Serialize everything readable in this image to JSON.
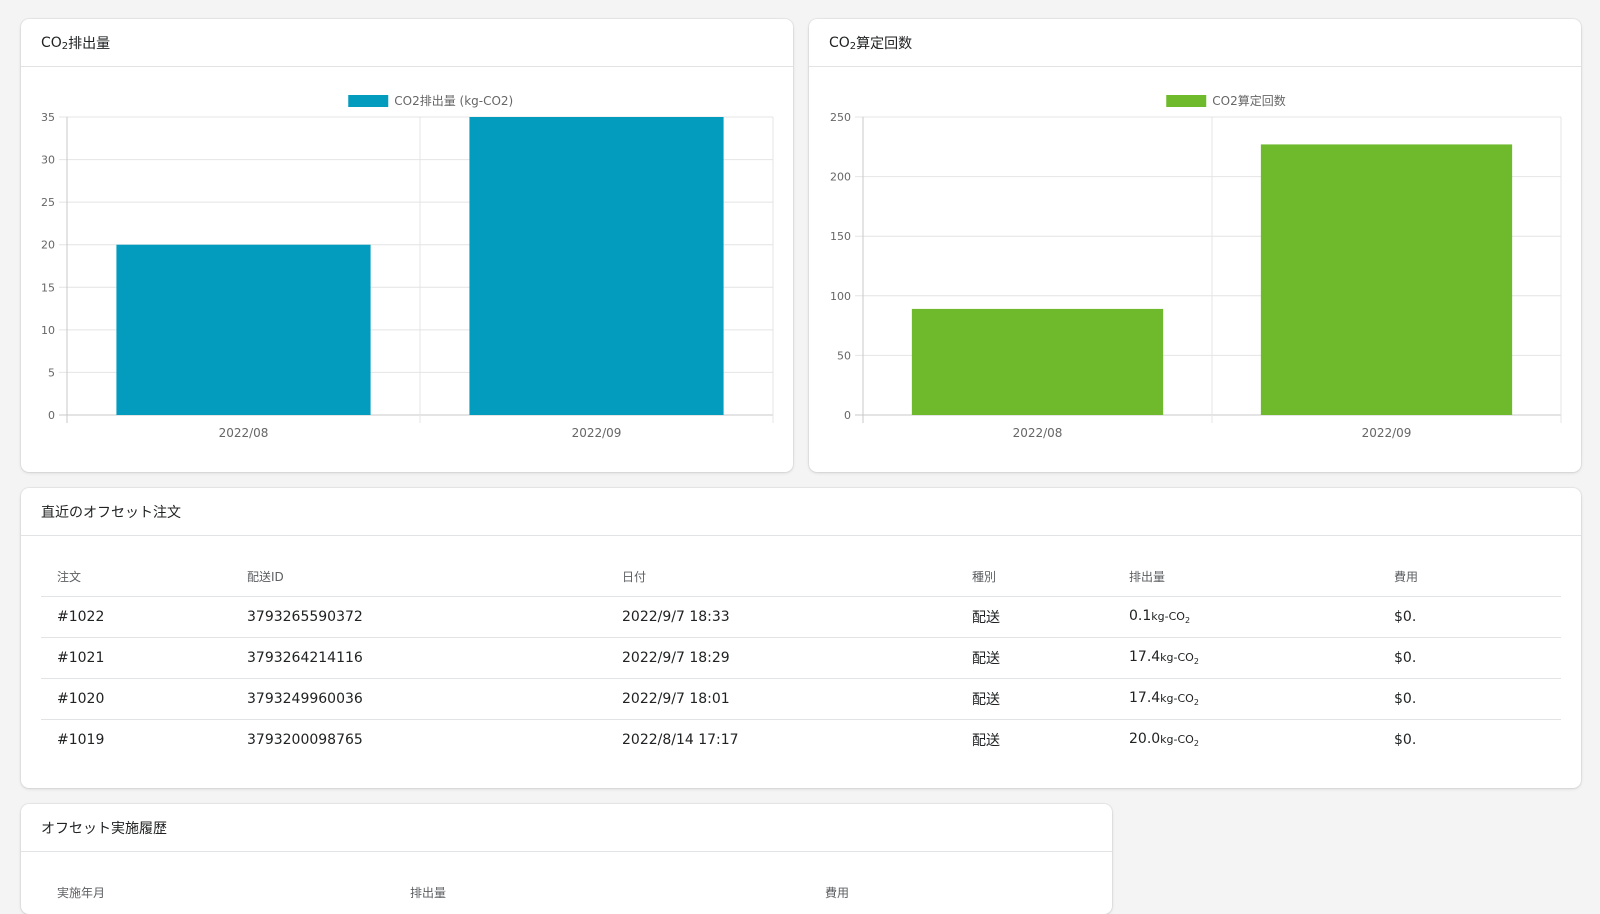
{
  "emission_card": {
    "title_prefix": "CO",
    "title_sub": "2",
    "title_suffix": "排出量"
  },
  "count_card": {
    "title_prefix": "CO",
    "title_sub": "2",
    "title_suffix": "算定回数"
  },
  "orders_card": {
    "title": "直近のオフセット注文",
    "columns": [
      "注文",
      "配送ID",
      "日付",
      "種別",
      "排出量",
      "費用"
    ],
    "unit_prefix": "kg-CO",
    "unit_sub": "2",
    "rows": [
      {
        "order": "#1022",
        "shipping_id": "3793265590372",
        "date": "2022/9/7 18:33",
        "type": "配送",
        "emission": "0.1",
        "cost": "$0."
      },
      {
        "order": "#1021",
        "shipping_id": "3793264214116",
        "date": "2022/9/7 18:29",
        "type": "配送",
        "emission": "17.4",
        "cost": "$0."
      },
      {
        "order": "#1020",
        "shipping_id": "3793249960036",
        "date": "2022/9/7 18:01",
        "type": "配送",
        "emission": "17.4",
        "cost": "$0."
      },
      {
        "order": "#1019",
        "shipping_id": "3793200098765",
        "date": "2022/8/14 17:17",
        "type": "配送",
        "emission": "20.0",
        "cost": "$0."
      }
    ]
  },
  "history_card": {
    "title": "オフセット実施履歴",
    "columns": [
      "実施年月",
      "排出量",
      "費用"
    ]
  },
  "chart_data": [
    {
      "type": "bar",
      "categories": [
        "2022/08",
        "2022/09"
      ],
      "series": [
        {
          "name": "CO2排出量 (kg-CO2)",
          "values": [
            20,
            35
          ],
          "color": "#039bbe"
        }
      ],
      "ylim": [
        0,
        35
      ],
      "yticks": [
        0,
        5,
        10,
        15,
        20,
        25,
        30,
        35
      ],
      "legend": "top-center",
      "grid": true
    },
    {
      "type": "bar",
      "categories": [
        "2022/08",
        "2022/09"
      ],
      "series": [
        {
          "name": "CO2算定回数",
          "values": [
            89,
            227
          ],
          "color": "#6fba2c"
        }
      ],
      "ylim": [
        0,
        250
      ],
      "yticks": [
        0,
        50,
        100,
        150,
        200,
        250
      ],
      "legend": "top-center",
      "grid": true
    }
  ]
}
